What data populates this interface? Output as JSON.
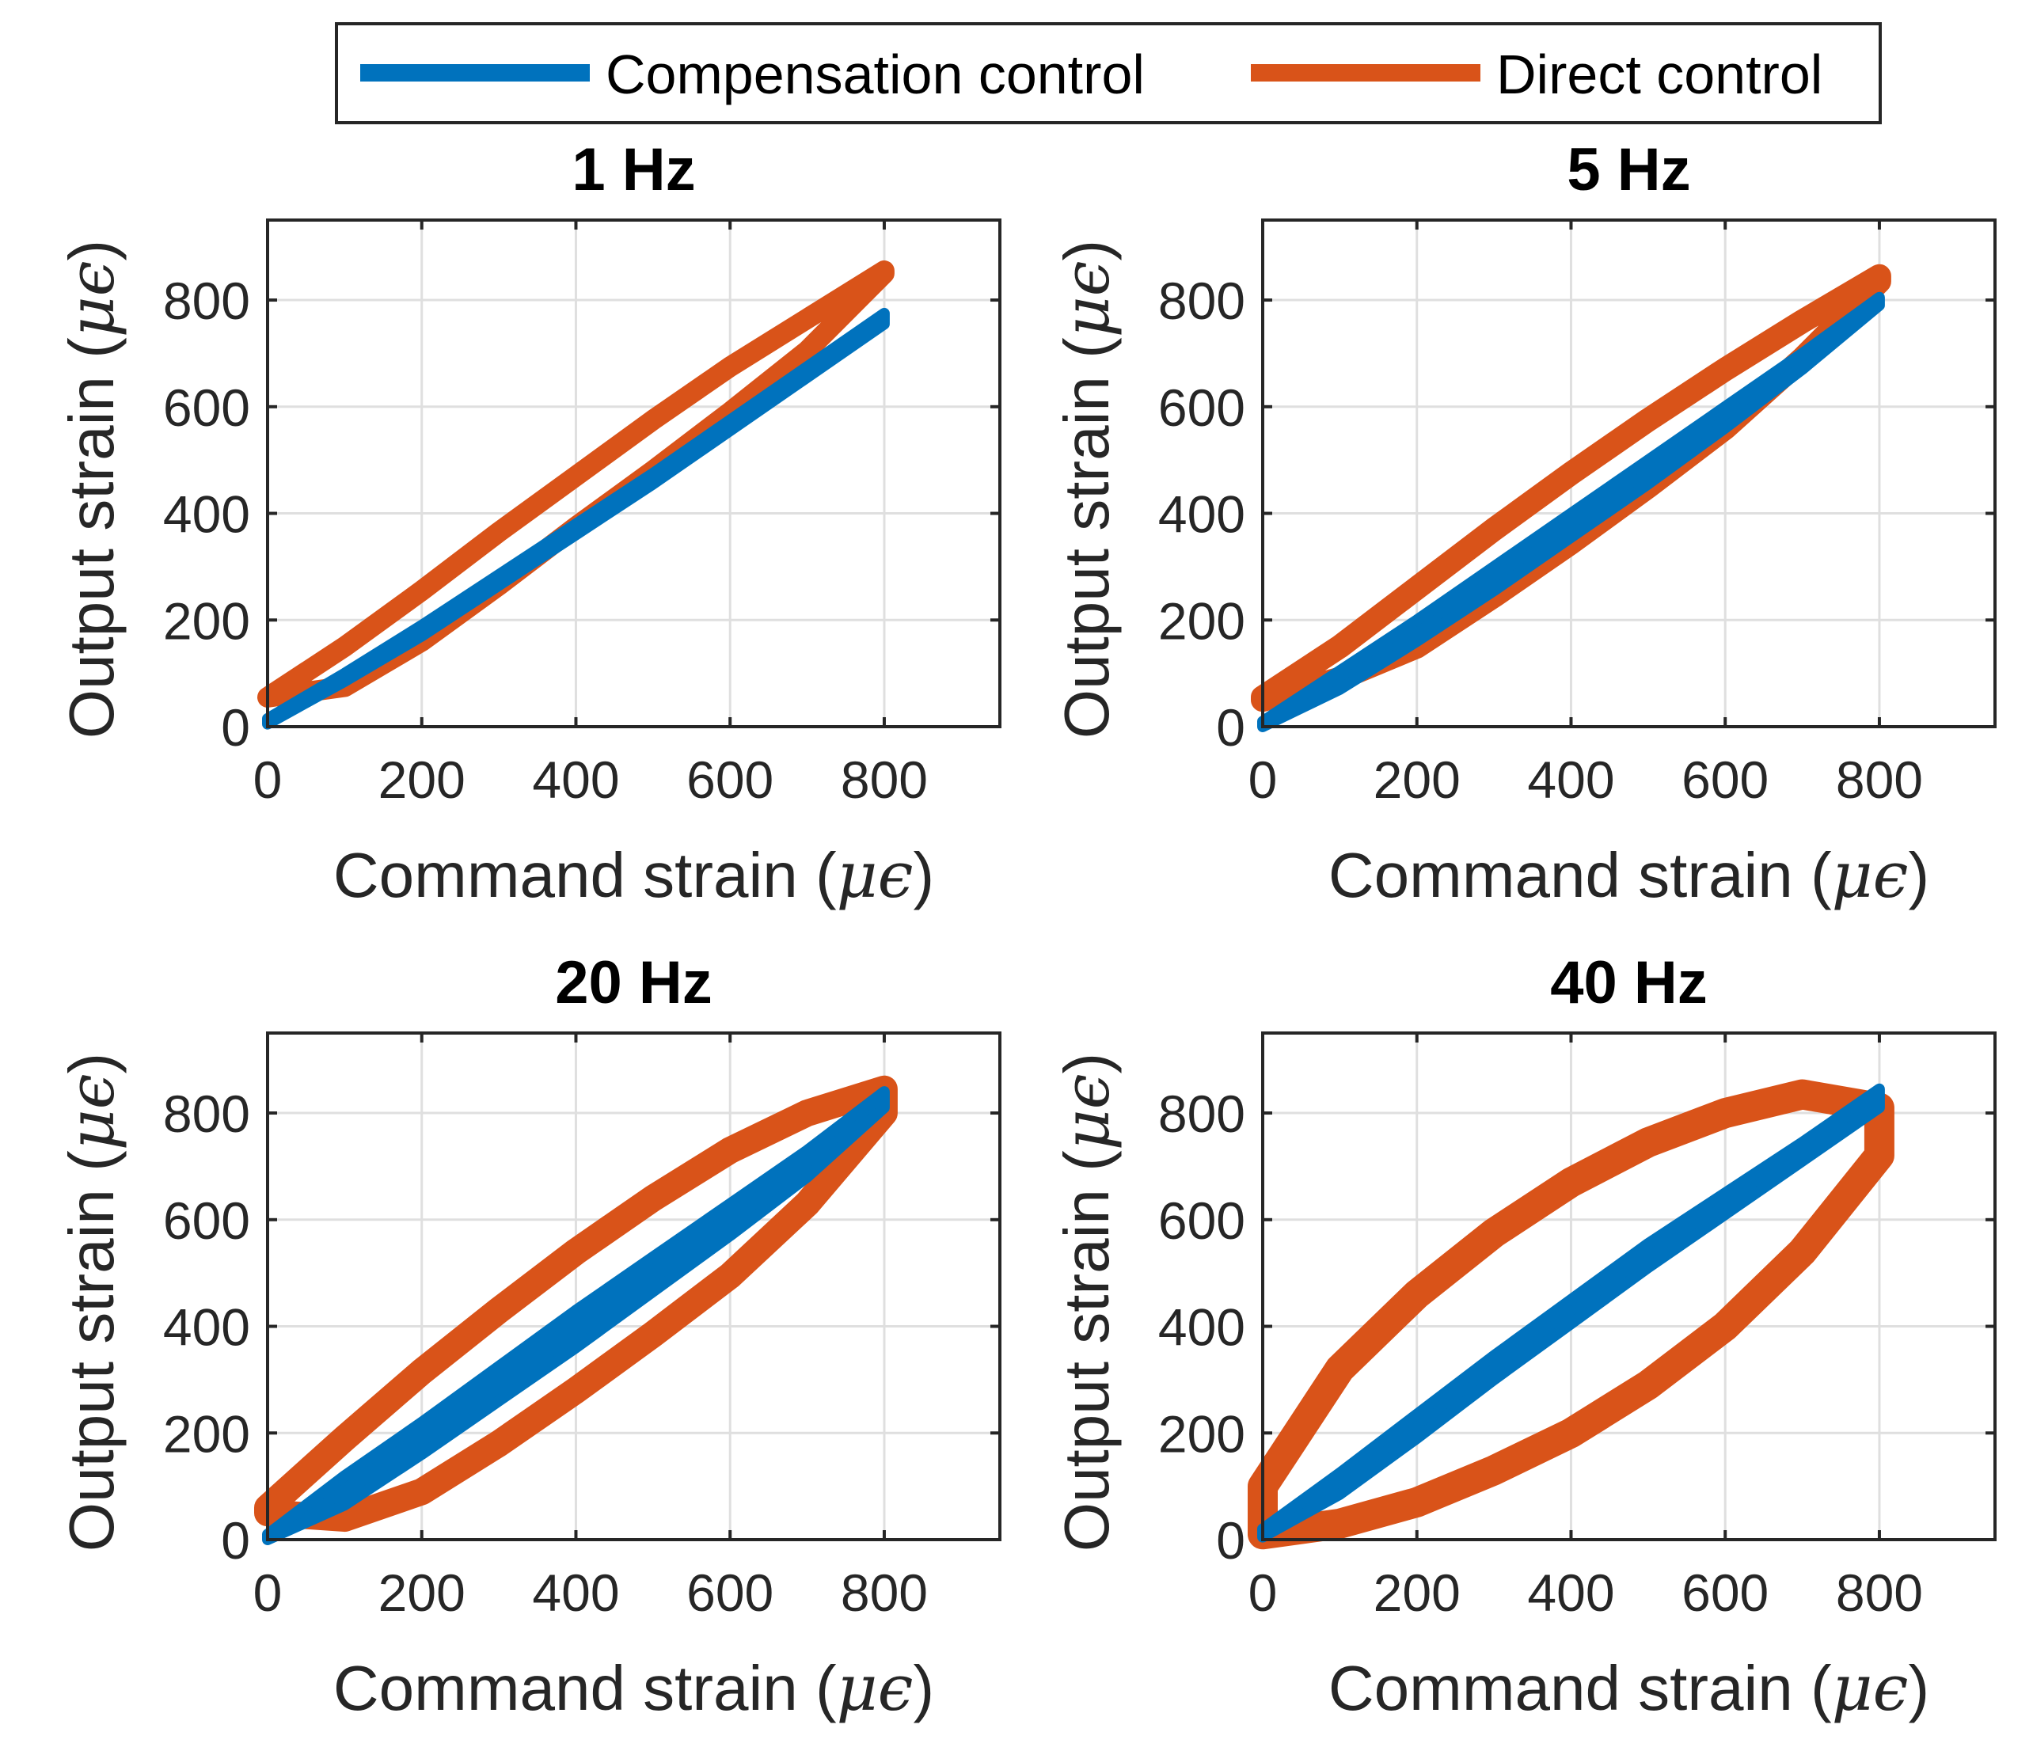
{
  "legend": {
    "entries": [
      {
        "label": "Compensation control",
        "color": "#0072BD"
      },
      {
        "label": "Direct control",
        "color": "#D95319"
      }
    ]
  },
  "chart_data": [
    {
      "type": "line",
      "title": "1 Hz",
      "xlabel_text": "Command strain (",
      "xlabel_unit": "μϵ",
      "xlabel_close": ")",
      "ylabel_text": "Output strain (",
      "ylabel_unit": "μϵ",
      "ylabel_close": ")",
      "xlim": [
        0,
        950
      ],
      "ylim": [
        0,
        950
      ],
      "xticks": [
        0,
        200,
        400,
        600,
        800
      ],
      "yticks": [
        0,
        200,
        400,
        600,
        800
      ],
      "grid": true,
      "series": [
        {
          "name": "Direct control",
          "color": "#D95319",
          "upper": {
            "x": [
              0,
              100,
              200,
              300,
              400,
              500,
              600,
              700,
              800
            ],
            "y": [
              55,
              150,
              255,
              365,
              470,
              575,
              675,
              765,
              855
            ]
          },
          "lower": {
            "x": [
              0,
              100,
              200,
              300,
              400,
              500,
              600,
              700,
              800
            ],
            "y": [
              55,
              75,
              160,
              265,
              375,
              480,
              590,
              705,
              850
            ]
          }
        },
        {
          "name": "Compensation control",
          "color": "#0072BD",
          "upper": {
            "x": [
              0,
              100,
              200,
              300,
              400,
              500,
              600,
              700,
              800
            ],
            "y": [
              15,
              100,
              190,
              285,
              380,
              475,
              575,
              675,
              775
            ]
          },
          "lower": {
            "x": [
              0,
              100,
              200,
              300,
              400,
              500,
              600,
              700,
              800
            ],
            "y": [
              5,
              85,
              170,
              265,
              360,
              455,
              555,
              655,
              755
            ]
          }
        }
      ]
    },
    {
      "type": "line",
      "title": "5 Hz",
      "xlabel_text": "Command strain (",
      "xlabel_unit": "μϵ",
      "xlabel_close": ")",
      "ylabel_text": "Output strain (",
      "ylabel_unit": "μϵ",
      "ylabel_close": ")",
      "xlim": [
        0,
        950
      ],
      "ylim": [
        0,
        950
      ],
      "xticks": [
        0,
        200,
        400,
        600,
        800
      ],
      "yticks": [
        0,
        200,
        400,
        600,
        800
      ],
      "grid": true,
      "series": [
        {
          "name": "Direct control",
          "color": "#D95319",
          "upper": {
            "x": [
              0,
              100,
              200,
              300,
              400,
              500,
              600,
              700,
              800
            ],
            "y": [
              55,
              150,
              260,
              370,
              475,
              575,
              670,
              760,
              845
            ]
          },
          "lower": {
            "x": [
              0,
              100,
              200,
              300,
              400,
              500,
              600,
              700,
              800
            ],
            "y": [
              50,
              90,
              150,
              245,
              345,
              450,
              560,
              690,
              835
            ]
          }
        },
        {
          "name": "Compensation control",
          "color": "#0072BD",
          "upper": {
            "x": [
              0,
              100,
              200,
              300,
              400,
              500,
              600,
              700,
              800
            ],
            "y": [
              10,
              105,
              200,
              300,
              400,
              500,
              600,
              700,
              805
            ]
          },
          "lower": {
            "x": [
              0,
              100,
              200,
              300,
              400,
              500,
              600,
              700,
              800
            ],
            "y": [
              0,
              70,
              160,
              255,
              355,
              455,
              560,
              670,
              790
            ]
          }
        }
      ]
    },
    {
      "type": "line",
      "title": "20 Hz",
      "xlabel_text": "Command strain (",
      "xlabel_unit": "μϵ",
      "xlabel_close": ")",
      "ylabel_text": "Output strain (",
      "ylabel_unit": "μϵ",
      "ylabel_close": ")",
      "xlim": [
        0,
        950
      ],
      "ylim": [
        0,
        950
      ],
      "xticks": [
        0,
        200,
        400,
        600,
        800
      ],
      "yticks": [
        0,
        200,
        400,
        600,
        800
      ],
      "grid": true,
      "series": [
        {
          "name": "Direct control",
          "color": "#D95319",
          "upper": {
            "x": [
              0,
              100,
              200,
              300,
              400,
              500,
              600,
              700,
              800
            ],
            "y": [
              60,
              190,
              315,
              430,
              540,
              640,
              730,
              800,
              845
            ]
          },
          "lower": {
            "x": [
              0,
              100,
              200,
              300,
              400,
              500,
              600,
              700,
              800
            ],
            "y": [
              50,
              40,
              90,
              180,
              280,
              385,
              495,
              630,
              800
            ]
          }
        },
        {
          "name": "Compensation control",
          "color": "#0072BD",
          "upper": {
            "x": [
              0,
              100,
              200,
              300,
              400,
              500,
              600,
              700,
              800
            ],
            "y": [
              10,
              120,
              220,
              325,
              430,
              530,
              630,
              730,
              840
            ]
          },
          "lower": {
            "x": [
              0,
              100,
              200,
              300,
              400,
              500,
              600,
              700,
              800
            ],
            "y": [
              0,
              65,
              160,
              260,
              360,
              465,
              570,
              680,
              810
            ]
          }
        }
      ]
    },
    {
      "type": "line",
      "title": "40 Hz",
      "xlabel_text": "Command strain (",
      "xlabel_unit": "μϵ",
      "xlabel_close": ")",
      "ylabel_text": "Output strain (",
      "ylabel_unit": "μϵ",
      "ylabel_close": ")",
      "xlim": [
        0,
        950
      ],
      "ylim": [
        0,
        950
      ],
      "xticks": [
        0,
        200,
        400,
        600,
        800
      ],
      "yticks": [
        0,
        200,
        400,
        600,
        800
      ],
      "grid": true,
      "series": [
        {
          "name": "Direct control",
          "color": "#D95319",
          "upper": {
            "x": [
              0,
              100,
              200,
              300,
              400,
              500,
              600,
              700,
              800
            ],
            "y": [
              100,
              320,
              460,
              575,
              670,
              745,
              800,
              835,
              810
            ]
          },
          "lower": {
            "x": [
              0,
              100,
              200,
              300,
              400,
              500,
              600,
              700,
              800
            ],
            "y": [
              10,
              30,
              70,
              130,
              200,
              290,
              400,
              540,
              720
            ]
          }
        },
        {
          "name": "Compensation control",
          "color": "#0072BD",
          "upper": {
            "x": [
              0,
              100,
              200,
              300,
              400,
              500,
              600,
              700,
              800
            ],
            "y": [
              20,
              125,
              235,
              345,
              450,
              555,
              650,
              745,
              845
            ]
          },
          "lower": {
            "x": [
              0,
              100,
              200,
              300,
              400,
              500,
              600,
              700,
              800
            ],
            "y": [
              5,
              85,
              190,
              300,
              405,
              510,
              610,
              710,
              810
            ]
          }
        }
      ]
    }
  ]
}
